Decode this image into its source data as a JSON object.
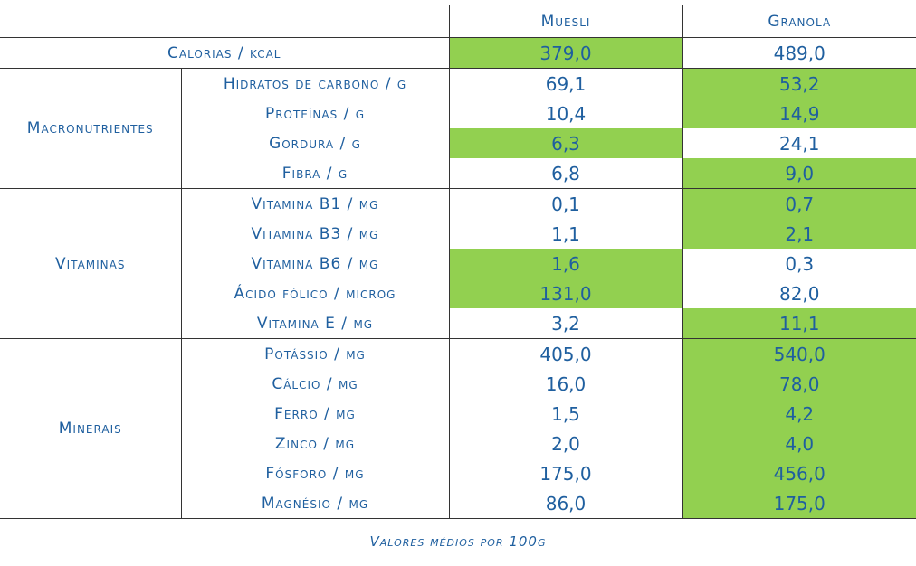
{
  "columns": {
    "muesli": "Muesli",
    "granola": "Granola"
  },
  "calorias": {
    "label": "Calorias / kcal",
    "muesli": "379,0",
    "granola": "489,0"
  },
  "groups": {
    "macro": "Macronutrientes",
    "vitaminas": "Vitaminas",
    "minerais": "Minerais"
  },
  "macro": [
    {
      "label": "Hidratos de carbono / g",
      "muesli": "69,1",
      "granola": "53,2"
    },
    {
      "label": "Proteínas / g",
      "muesli": "10,4",
      "granola": "14,9"
    },
    {
      "label": "Gordura / g",
      "muesli": "6,3",
      "granola": "24,1"
    },
    {
      "label": "Fibra / g",
      "muesli": "6,8",
      "granola": "9,0"
    }
  ],
  "vitaminas": [
    {
      "label": "Vitamina B1 / mg",
      "muesli": "0,1",
      "granola": "0,7"
    },
    {
      "label": "Vitamina B3 / mg",
      "muesli": "1,1",
      "granola": "2,1"
    },
    {
      "label": "Vitamina B6 / mg",
      "muesli": "1,6",
      "granola": "0,3"
    },
    {
      "label": "Ácido fólico / microg",
      "muesli": "131,0",
      "granola": "82,0"
    },
    {
      "label": "Vitamina E / mg",
      "muesli": "3,2",
      "granola": "11,1"
    }
  ],
  "minerais": [
    {
      "label": "Potássio / mg",
      "muesli": "405,0",
      "granola": "540,0"
    },
    {
      "label": "Cálcio / mg",
      "muesli": "16,0",
      "granola": "78,0"
    },
    {
      "label": "Ferro / mg",
      "muesli": "1,5",
      "granola": "4,2"
    },
    {
      "label": "Zinco / mg",
      "muesli": "2,0",
      "granola": "4,0"
    },
    {
      "label": "Fósforo / mg",
      "muesli": "175,0",
      "granola": "456,0"
    },
    {
      "label": "Magnésio / mg",
      "muesli": "86,0",
      "granola": "175,0"
    }
  ],
  "highlight_color": "#92d050",
  "text_color": "#1f5f9f",
  "footer": "Valores médios por 100g"
}
